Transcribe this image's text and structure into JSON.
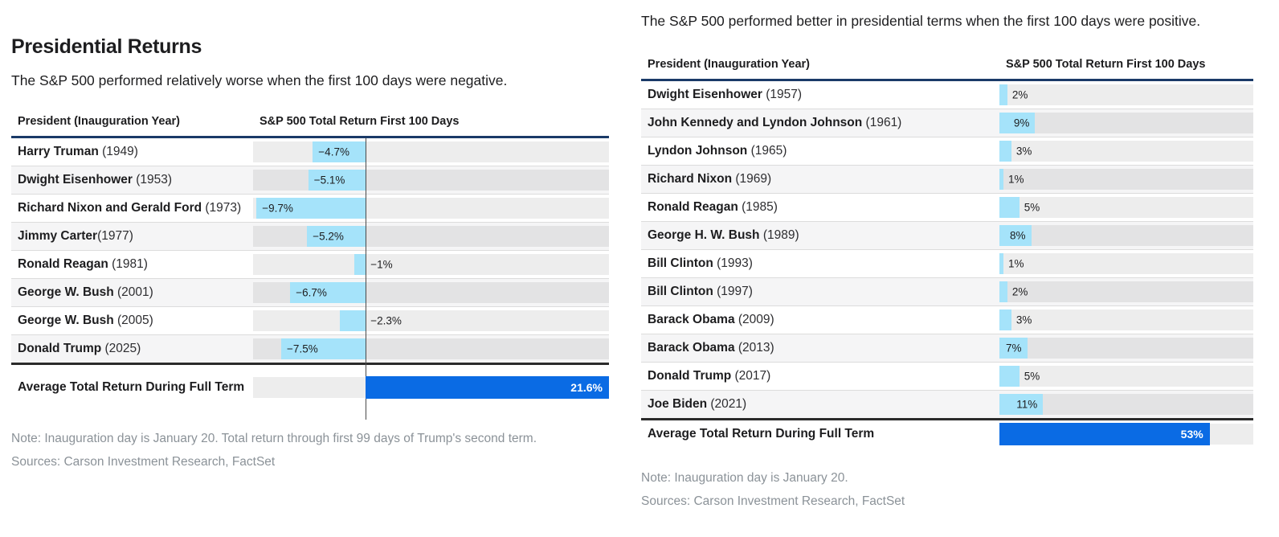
{
  "colors": {
    "bar_light_blue": "#a5e3fa",
    "summary_bar_blue": "#0a6be4",
    "header_rule_navy": "#1a3a68",
    "summary_rule_dark": "#2b2b2b",
    "note_gray": "#8b9298",
    "alt_row_bg": "#f5f5f6",
    "text_dark": "#1d1d1f"
  },
  "chart_data": [
    {
      "id": "negative-first-100-days",
      "type": "bar",
      "orientation": "horizontal",
      "title": "Presidential Returns",
      "subtitle": "The S&P 500 performed relatively worse when the first 100 days were negative.",
      "column_headers": [
        "President (Inauguration Year)",
        "S&P 500 Total Return First 100 Days"
      ],
      "rows": [
        {
          "president": "Harry Truman",
          "year": " (1949)",
          "value": -4.7,
          "label": "−4.7%"
        },
        {
          "president": "Dwight Eisenhower",
          "year": " (1953)",
          "value": -5.1,
          "label": "−5.1%"
        },
        {
          "president": "Richard Nixon and Gerald Ford",
          "year": " (1973)",
          "value": -9.7,
          "label": "−9.7%"
        },
        {
          "president": "Jimmy Carter",
          "year": "(1977)",
          "value": -5.2,
          "label": "−5.2%"
        },
        {
          "president": "Ronald Reagan",
          "year": " (1981)",
          "value": -1,
          "label": "−1%"
        },
        {
          "president": "George W. Bush",
          "year": " (2001)",
          "value": -6.7,
          "label": "−6.7%"
        },
        {
          "president": "George W. Bush",
          "year": " (2005)",
          "value": -2.3,
          "label": "−2.3%"
        },
        {
          "president": "Donald Trump",
          "year": " (2025)",
          "value": -7.5,
          "label": "−7.5%"
        }
      ],
      "summary": {
        "label": "Average Total Return During Full Term",
        "value": 21.6,
        "display": "21.6%"
      },
      "xlim": [
        -10,
        21.6
      ],
      "inside_label_min": 4,
      "show_zero_line": true,
      "grid": false,
      "note": "Note: Inauguration day is January 20. Total return through first 99 days of Trump's second term.",
      "sources": "Sources: Carson Investment Research, FactSet"
    },
    {
      "id": "positive-first-100-days",
      "type": "bar",
      "orientation": "horizontal",
      "title": "",
      "subtitle": "The S&P 500 performed better in presidential terms when the first 100 days were positive.",
      "column_headers": [
        "President (Inauguration Year)",
        "S&P 500 Total Return First 100 Days"
      ],
      "rows": [
        {
          "president": "Dwight Eisenhower",
          "year": " (1957)",
          "value": 2,
          "label": "2%"
        },
        {
          "president": "John Kennedy and Lyndon Johnson",
          "year": " (1961)",
          "value": 9,
          "label": "9%"
        },
        {
          "president": "Lyndon Johnson",
          "year": " (1965)",
          "value": 3,
          "label": "3%"
        },
        {
          "president": "Richard Nixon",
          "year": " (1969)",
          "value": 1,
          "label": "1%"
        },
        {
          "president": "Ronald Reagan",
          "year": " (1985)",
          "value": 5,
          "label": "5%"
        },
        {
          "president": "George H. W. Bush",
          "year": " (1989)",
          "value": 8,
          "label": "8%"
        },
        {
          "president": "Bill Clinton",
          "year": " (1993)",
          "value": 1,
          "label": "1%"
        },
        {
          "president": "Bill Clinton",
          "year": " (1997)",
          "value": 2,
          "label": "2%"
        },
        {
          "president": "Barack Obama",
          "year": " (2009)",
          "value": 3,
          "label": "3%"
        },
        {
          "president": "Barack Obama",
          "year": " (2013)",
          "value": 7,
          "label": "7%"
        },
        {
          "president": "Donald Trump",
          "year": " (2017)",
          "value": 5,
          "label": "5%"
        },
        {
          "president": "Joe Biden",
          "year": " (2021)",
          "value": 11,
          "label": "11%"
        }
      ],
      "summary": {
        "label": "Average Total Return During Full Term",
        "value": 53,
        "display": "53%"
      },
      "xlim": [
        0,
        64
      ],
      "inside_label_min": 7,
      "show_zero_line": false,
      "grid": false,
      "note": "Note: Inauguration day is January 20.",
      "sources": "Sources: Carson Investment Research, FactSet"
    }
  ]
}
